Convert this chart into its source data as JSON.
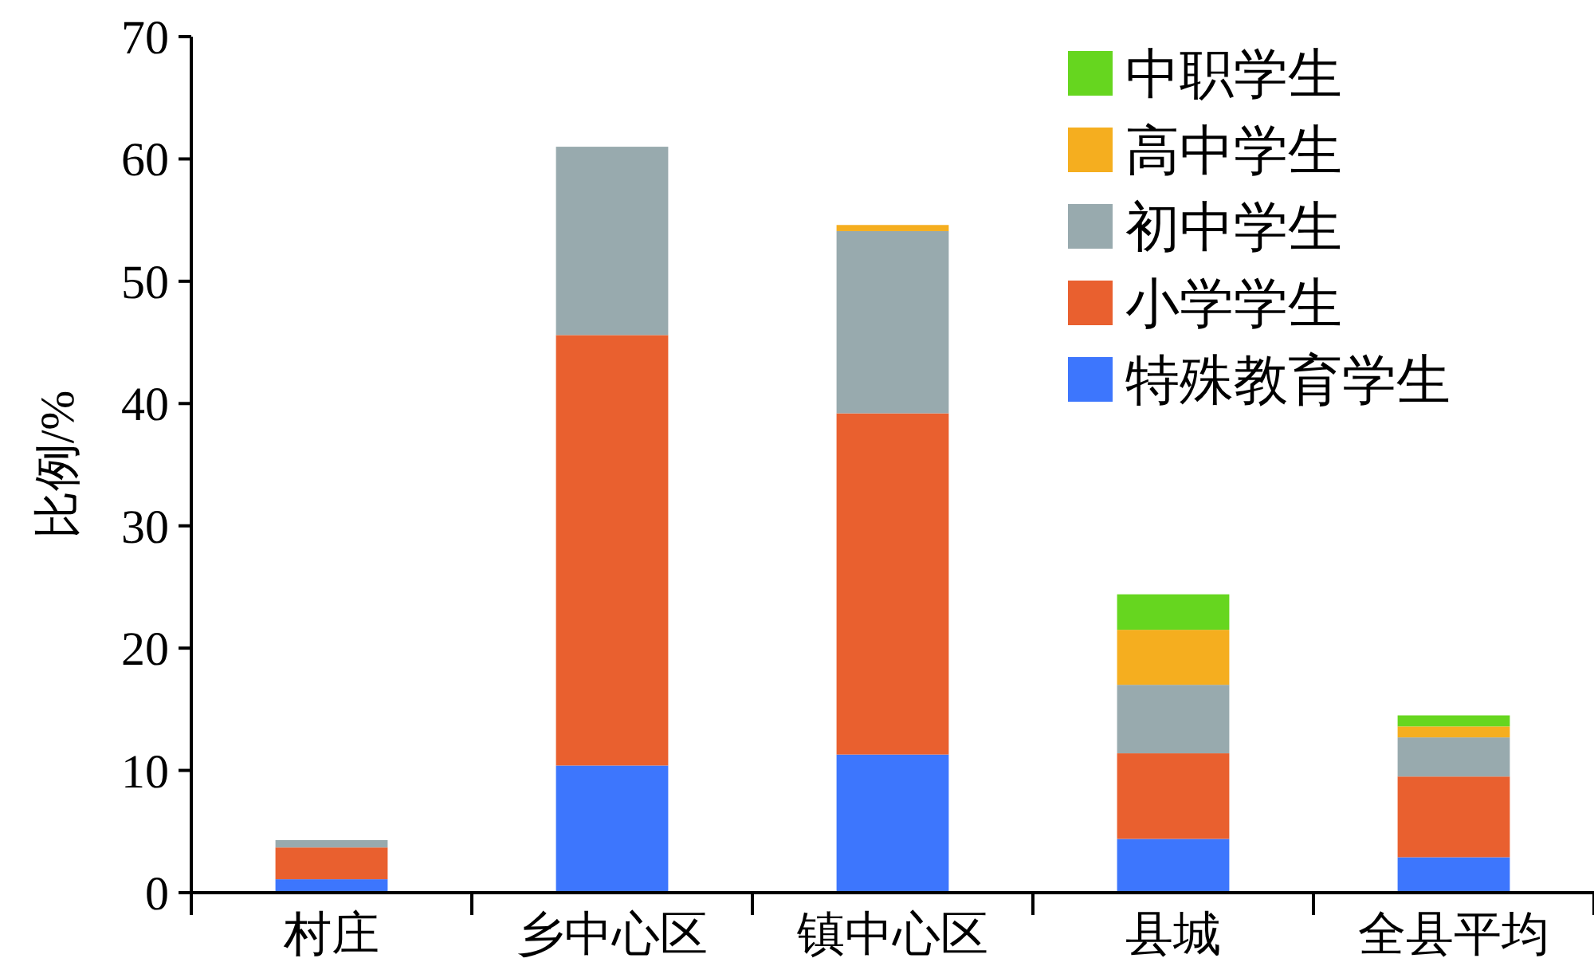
{
  "chart_data": {
    "type": "bar",
    "stacked": true,
    "ylabel": "比例/%",
    "categories": [
      "村庄",
      "乡中心区",
      "镇中心区",
      "县城",
      "全县平均"
    ],
    "series": [
      {
        "name": "特殊教育学生",
        "color": "#3d76fd",
        "values": [
          1.1,
          10.4,
          11.3,
          4.4,
          2.9
        ]
      },
      {
        "name": "小学学生",
        "color": "#e9602f",
        "values": [
          2.6,
          35.2,
          27.9,
          7.0,
          6.6
        ]
      },
      {
        "name": "初中学生",
        "color": "#98aaae",
        "values": [
          0.6,
          15.4,
          14.9,
          5.6,
          3.2
        ]
      },
      {
        "name": "高中学生",
        "color": "#f5ae1f",
        "values": [
          0,
          0,
          0.5,
          4.5,
          0.9
        ]
      },
      {
        "name": "中职学生",
        "color": "#66d61f",
        "values": [
          0,
          0,
          0,
          2.9,
          0.9
        ]
      }
    ],
    "ylim": [
      0,
      70
    ],
    "yticks": [
      0,
      10,
      20,
      30,
      40,
      50,
      60,
      70
    ],
    "grid": false,
    "legend": "top right"
  }
}
